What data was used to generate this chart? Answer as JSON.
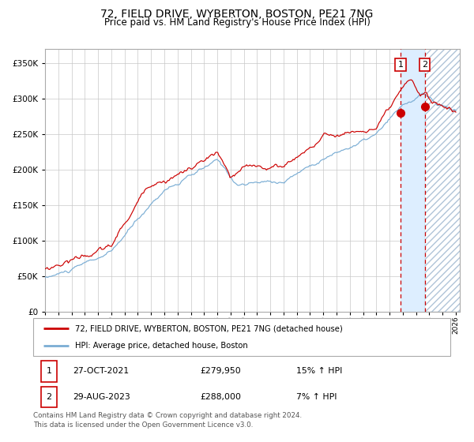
{
  "title": "72, FIELD DRIVE, WYBERTON, BOSTON, PE21 7NG",
  "subtitle": "Price paid vs. HM Land Registry's House Price Index (HPI)",
  "title_fontsize": 10,
  "subtitle_fontsize": 8.5,
  "legend_label_red": "72, FIELD DRIVE, WYBERTON, BOSTON, PE21 7NG (detached house)",
  "legend_label_blue": "HPI: Average price, detached house, Boston",
  "transaction1_date": "27-OCT-2021",
  "transaction1_price": "£279,950",
  "transaction1_hpi": "15% ↑ HPI",
  "transaction2_date": "29-AUG-2023",
  "transaction2_price": "£288,000",
  "transaction2_hpi": "7% ↑ HPI",
  "footer": "Contains HM Land Registry data © Crown copyright and database right 2024.\nThis data is licensed under the Open Government Licence v3.0.",
  "red_color": "#cc0000",
  "blue_color": "#7aadd4",
  "highlight_color": "#ddeeff",
  "background_color": "#ffffff",
  "grid_color": "#c8c8c8",
  "ylim": [
    0,
    370000
  ],
  "yticks": [
    0,
    50000,
    100000,
    150000,
    200000,
    250000,
    300000,
    350000
  ],
  "transaction1_x": 2021.83,
  "transaction2_x": 2023.66,
  "transaction1_y": 279950,
  "transaction2_y": 288000,
  "xmin": 1995,
  "xmax": 2026.3
}
